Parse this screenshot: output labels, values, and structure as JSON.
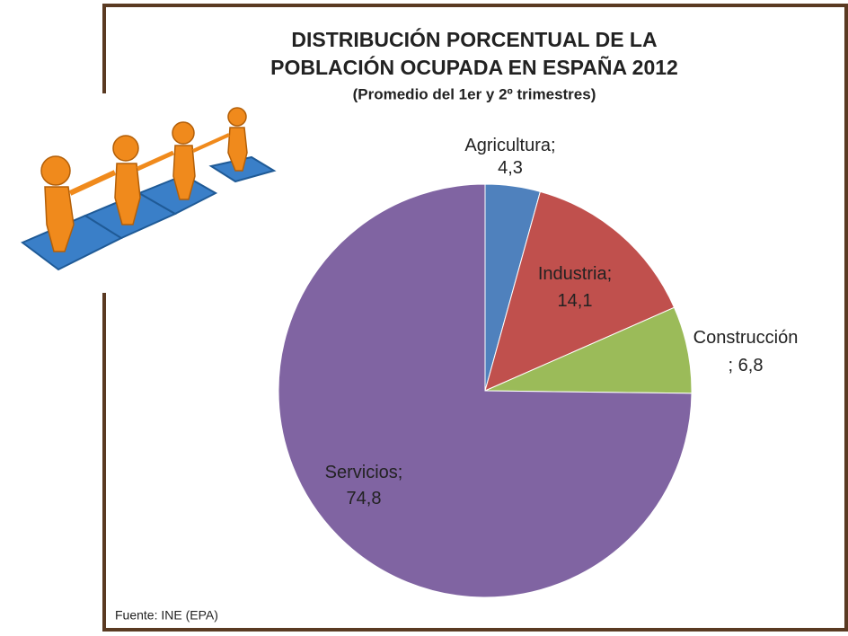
{
  "chart_data": {
    "type": "pie",
    "title": [
      "DISTRIBUCIÓN PORCENTUAL DE LA",
      "POBLACIÓN OCUPADA EN ESPAÑA 2012"
    ],
    "subtitle": "(Promedio del 1er y 2º trimestres)",
    "categories": [
      "Agricultura",
      "Industria",
      "Construcción",
      "Servicios"
    ],
    "label_separator": ";",
    "values": [
      4.3,
      14.1,
      6.8,
      74.8
    ],
    "value_labels": [
      "4,3",
      "14,1",
      "6,8",
      "74,8"
    ],
    "colors": [
      "#4f81bd",
      "#c0504d",
      "#9bbb59",
      "#8064a2"
    ],
    "source": "Fuente: INE (EPA)"
  }
}
